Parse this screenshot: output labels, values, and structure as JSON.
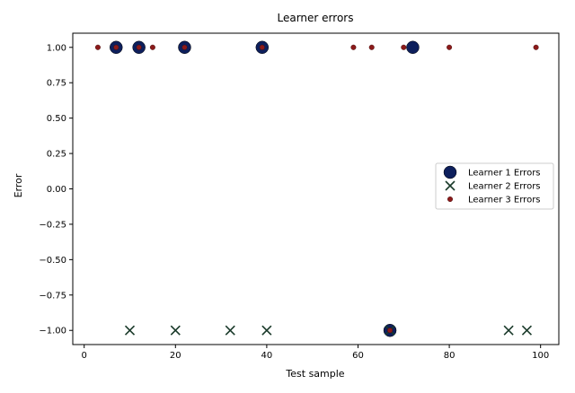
{
  "chart_data": {
    "type": "scatter",
    "title": "Learner errors",
    "xlabel": "Test sample",
    "ylabel": "Error",
    "xlim": [
      -2.5,
      104
    ],
    "ylim": [
      -1.1,
      1.1
    ],
    "xticks": [
      0,
      20,
      40,
      60,
      80,
      100
    ],
    "yticks": [
      -1.0,
      -0.75,
      -0.5,
      -0.25,
      0.0,
      0.25,
      0.5,
      0.75,
      1.0
    ],
    "ytick_labels": [
      "−1.00",
      "−0.75",
      "−0.50",
      "−0.25",
      "0.00",
      "0.25",
      "0.50",
      "0.75",
      "1.00"
    ],
    "xtick_labels": [
      "0",
      "20",
      "40",
      "60",
      "80",
      "100"
    ],
    "legend_position": "center-right",
    "series": [
      {
        "name": "Learner 1 Errors",
        "marker": "circle-large",
        "color": "#0d1f5c",
        "points": [
          [
            7,
            1
          ],
          [
            12,
            1
          ],
          [
            22,
            1
          ],
          [
            39,
            1
          ],
          [
            72,
            1
          ],
          [
            67,
            -1
          ]
        ]
      },
      {
        "name": "Learner 2 Errors",
        "marker": "x",
        "color": "#1a3a2a",
        "points": [
          [
            10,
            -1
          ],
          [
            20,
            -1
          ],
          [
            32,
            -1
          ],
          [
            40,
            -1
          ],
          [
            67,
            -1
          ],
          [
            93,
            -1
          ],
          [
            97,
            -1
          ]
        ]
      },
      {
        "name": "Learner 3 Errors",
        "marker": "circle-small",
        "color": "#8b1a1a",
        "points": [
          [
            3,
            1
          ],
          [
            7,
            1
          ],
          [
            12,
            1
          ],
          [
            15,
            1
          ],
          [
            22,
            1
          ],
          [
            39,
            1
          ],
          [
            59,
            1
          ],
          [
            63,
            1
          ],
          [
            70,
            1
          ],
          [
            80,
            1
          ],
          [
            99,
            1
          ],
          [
            67,
            -1
          ]
        ]
      }
    ]
  }
}
